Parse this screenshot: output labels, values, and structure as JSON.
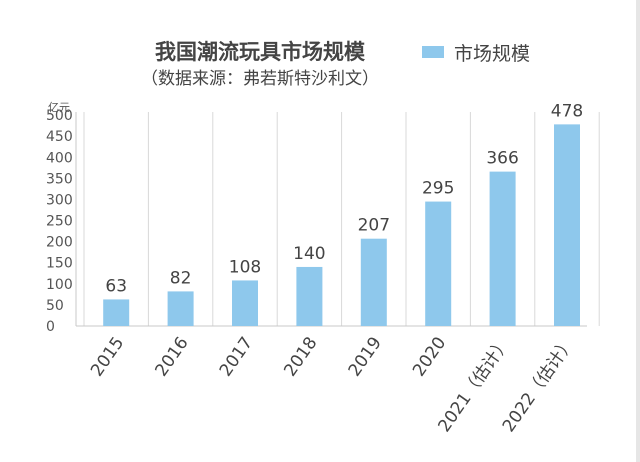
{
  "chart_data": {
    "type": "bar",
    "title": "我国潮流玩具市场规模",
    "subtitle": "（数据来源：弗若斯特沙利文）",
    "unit": "亿元",
    "legend": {
      "label": "市场规模",
      "position": "top-right"
    },
    "categories": [
      "2015",
      "2016",
      "2017",
      "2018",
      "2019",
      "2020",
      "2021（估计）",
      "2022（估计）"
    ],
    "series": [
      {
        "name": "市场规模",
        "values": [
          63,
          82,
          108,
          140,
          207,
          295,
          366,
          478
        ],
        "color": "#8ec8ec"
      }
    ],
    "yticks": [
      0,
      50,
      100,
      150,
      200,
      250,
      300,
      350,
      400,
      450,
      500
    ],
    "ylim": [
      0,
      550
    ],
    "grid": "vertical",
    "xlabel": "",
    "ylabel": "亿元"
  }
}
